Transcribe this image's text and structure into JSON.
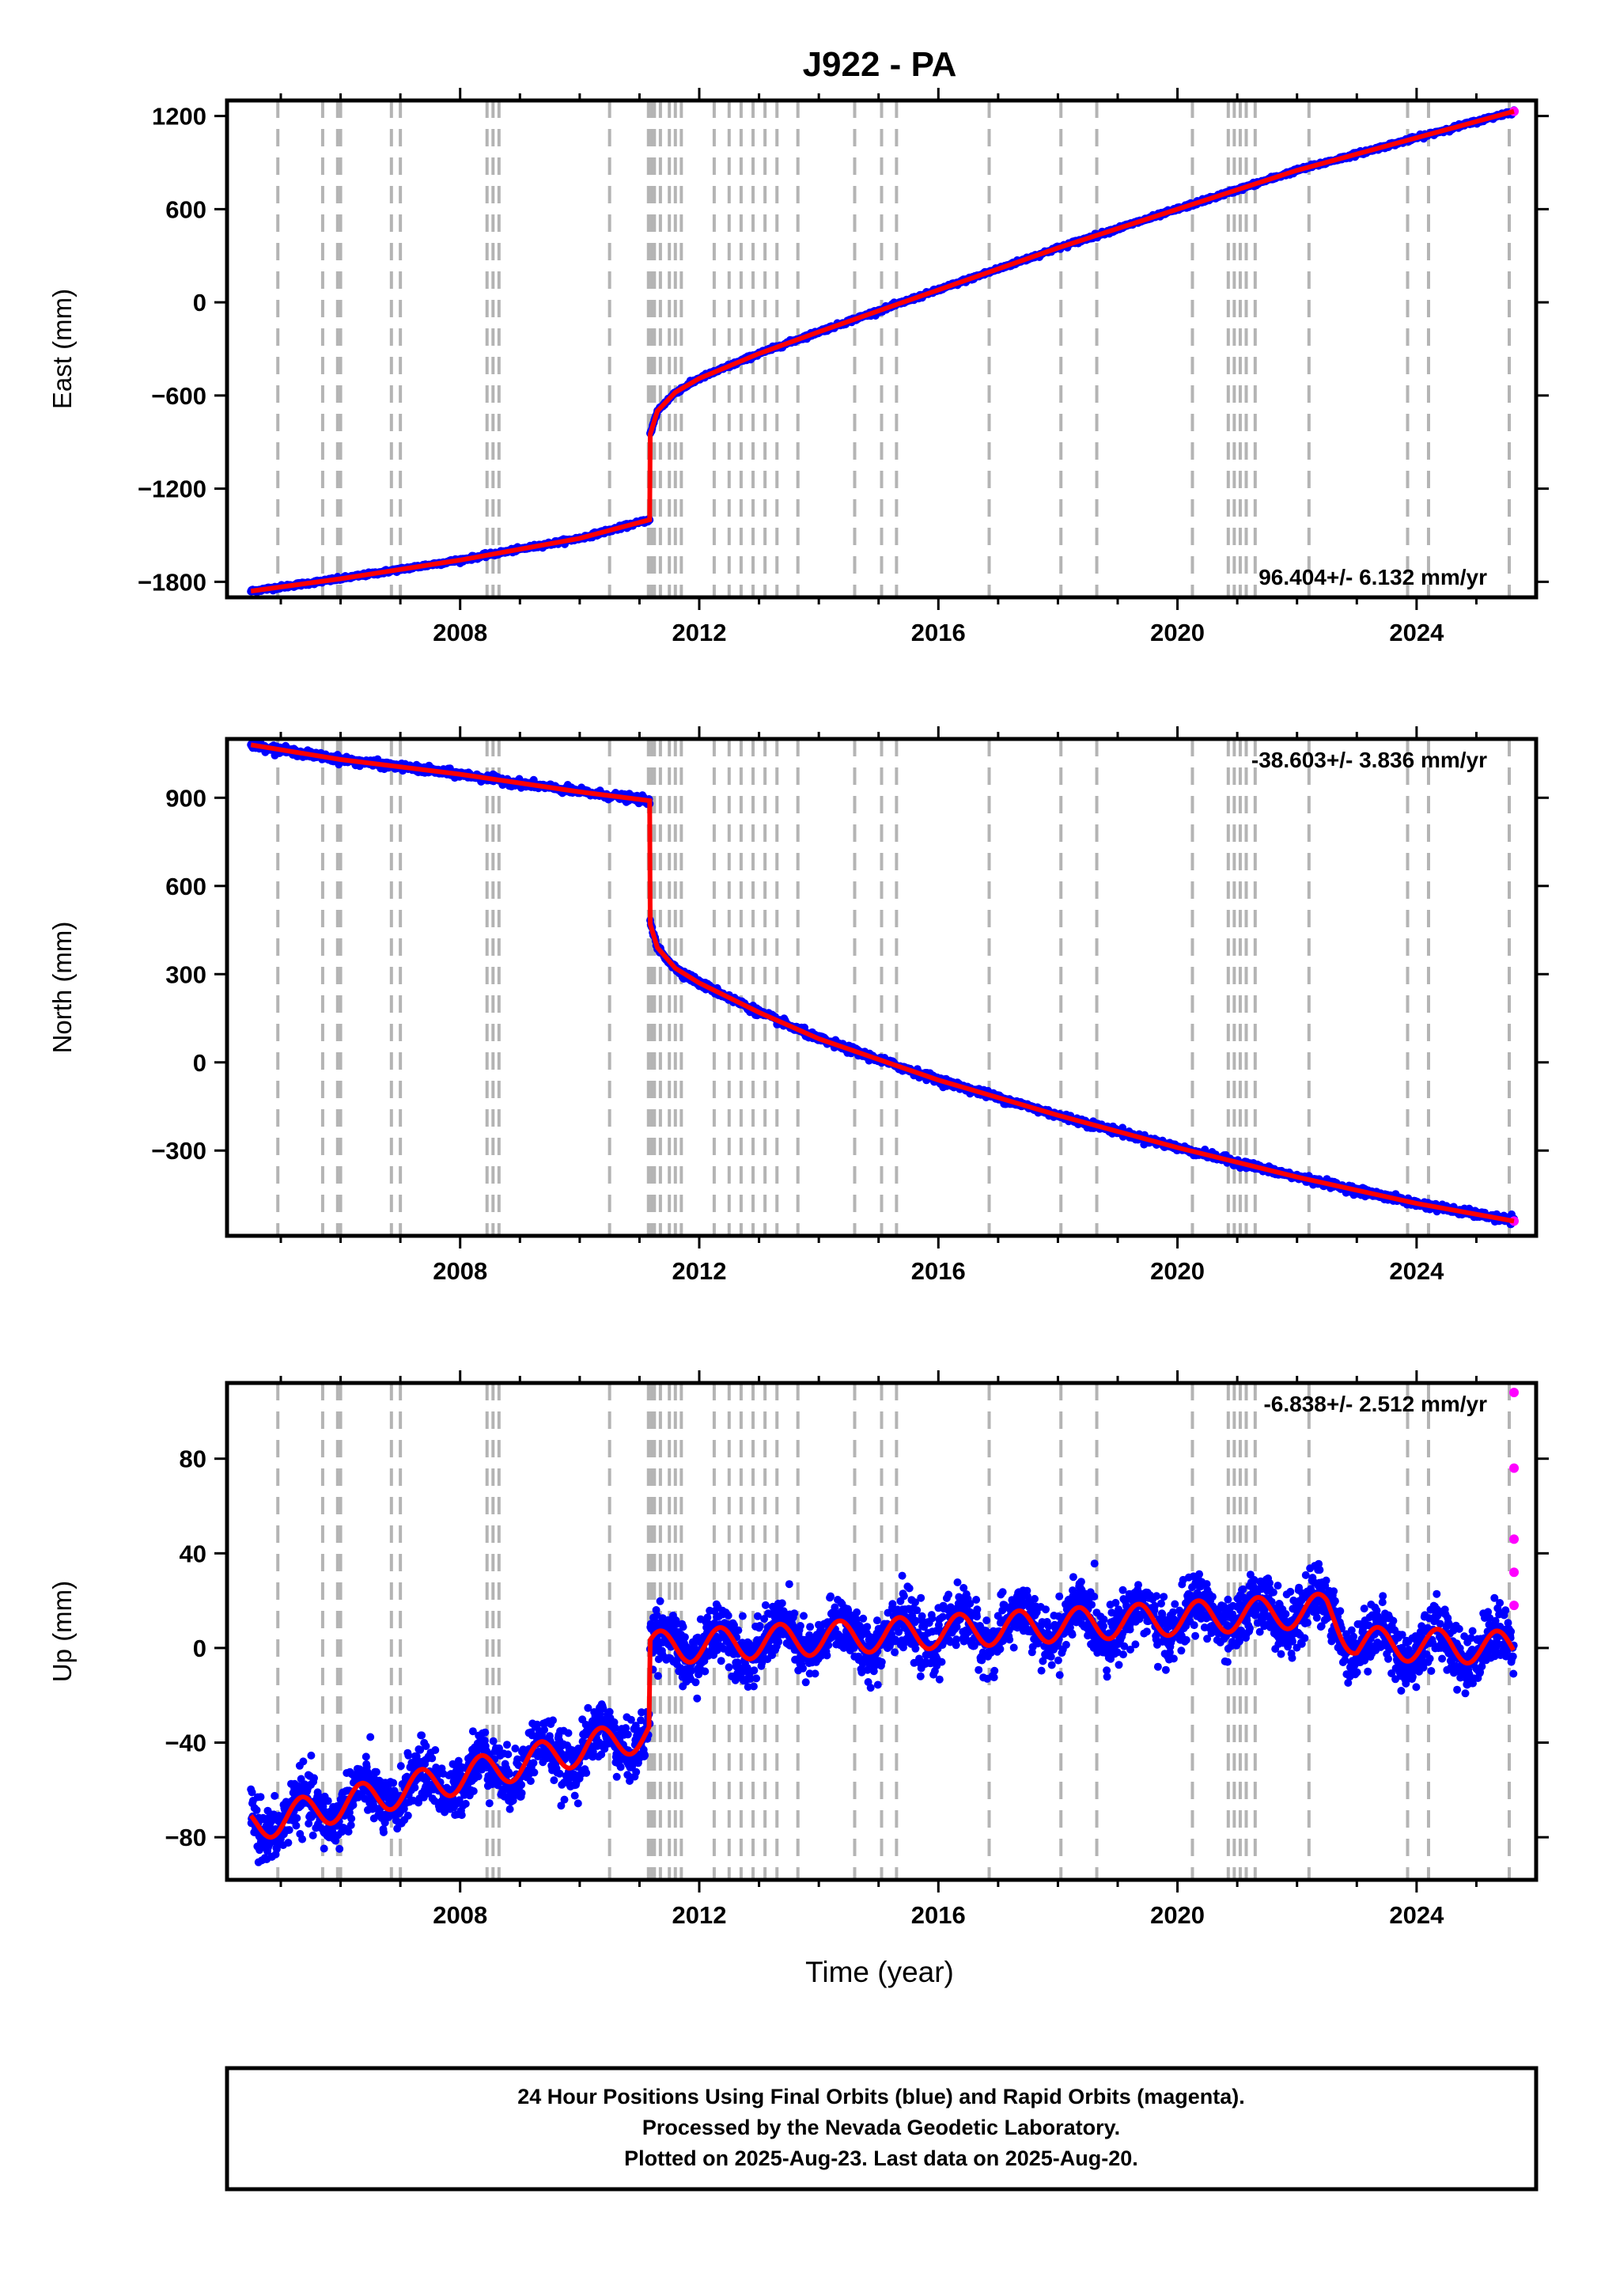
{
  "title": "J922 - PA",
  "xlabel": "Time (year)",
  "x_ticks": [
    "2008",
    "2012",
    "2016",
    "2020",
    "2024"
  ],
  "footer": {
    "line1": "24 Hour Positions Using Final Orbits (blue) and Rapid Orbits (magenta).",
    "line2": "Processed by the Nevada Geodetic Laboratory.",
    "line3": "Plotted on 2025-Aug-23. Last data on 2025-Aug-20."
  },
  "colors": {
    "final_orbits": "#0000ff",
    "rapid_orbits": "#ff00ff",
    "model_fit": "#ff0000",
    "event_lines": "#b4b4b4"
  },
  "event_lines_years": [
    2004.95,
    2005.7,
    2005.95,
    2006.0,
    2006.85,
    2007.0,
    2008.45,
    2008.55,
    2008.65,
    2010.5,
    2011.15,
    2011.2,
    2011.25,
    2011.35,
    2011.5,
    2011.6,
    2011.7,
    2012.25,
    2012.5,
    2012.7,
    2012.9,
    2013.1,
    2013.3,
    2013.65,
    2014.6,
    2015.05,
    2015.3,
    2016.85,
    2018.05,
    2018.65,
    2020.25,
    2020.85,
    2020.95,
    2021.05,
    2021.15,
    2021.3,
    2022.2,
    2023.85,
    2024.2,
    2025.55
  ],
  "chart_data": [
    {
      "type": "scatter",
      "panel": "east",
      "ylabel": "East (mm)",
      "y_ticks": [
        "1200",
        "600",
        "0",
        "−600",
        "−1200",
        "−1800"
      ],
      "ylim": [
        -1900,
        1300
      ],
      "xlim": [
        2004.1,
        2026.0
      ],
      "rate_label": "96.404+/- 6.132 mm/yr",
      "x": [
        2004.5,
        2006.0,
        2008.0,
        2010.0,
        2011.17,
        2011.18,
        2011.3,
        2011.6,
        2012.0,
        2013.0,
        2014.0,
        2016.0,
        2018.0,
        2020.0,
        2022.0,
        2024.0,
        2025.63
      ],
      "y": [
        -1860,
        -1780,
        -1660,
        -1520,
        -1400,
        -850,
        -700,
        -580,
        -490,
        -330,
        -190,
        80,
        350,
        600,
        850,
        1060,
        1230
      ],
      "rapid_points": [
        [
          2025.63,
          1230
        ]
      ]
    },
    {
      "type": "scatter",
      "panel": "north",
      "ylabel": "North (mm)",
      "y_ticks": [
        "900",
        "600",
        "300",
        "0",
        "−300"
      ],
      "ylim": [
        -590,
        1100
      ],
      "xlim": [
        2004.1,
        2026.0
      ],
      "rate_label": "-38.603+/- 3.836 mm/yr",
      "x": [
        2004.5,
        2006.0,
        2008.0,
        2010.0,
        2011.17,
        2011.18,
        2011.3,
        2011.6,
        2012.0,
        2013.0,
        2014.0,
        2016.0,
        2018.0,
        2020.0,
        2022.0,
        2024.0,
        2025.63
      ],
      "y": [
        1080,
        1030,
        980,
        920,
        890,
        470,
        390,
        320,
        270,
        170,
        80,
        -60,
        -180,
        -290,
        -390,
        -480,
        -540
      ],
      "rapid_points": [
        [
          2025.63,
          -540
        ]
      ]
    },
    {
      "type": "scatter",
      "panel": "up",
      "ylabel": "Up (mm)",
      "y_ticks": [
        "80",
        "40",
        "0",
        "−40",
        "−80"
      ],
      "ylim": [
        -98,
        112
      ],
      "xlim": [
        2004.1,
        2026.0
      ],
      "rate_label": "-6.838+/- 2.512 mm/yr",
      "trend": {
        "pre_2011": [
          [
            2004.5,
            -75
          ],
          [
            2011.17,
            -36
          ]
        ],
        "post_2011": [
          [
            2011.18,
            0
          ],
          [
            2022.5,
            16
          ],
          [
            2023.0,
            2
          ],
          [
            2025.6,
            0
          ]
        ]
      },
      "seasonal_amplitude_mm": 7,
      "noise_sigma_mm": 6,
      "rapid_points": [
        [
          2025.63,
          108
        ],
        [
          2025.63,
          76
        ],
        [
          2025.63,
          46
        ],
        [
          2025.63,
          32
        ],
        [
          2025.63,
          18
        ]
      ]
    }
  ]
}
